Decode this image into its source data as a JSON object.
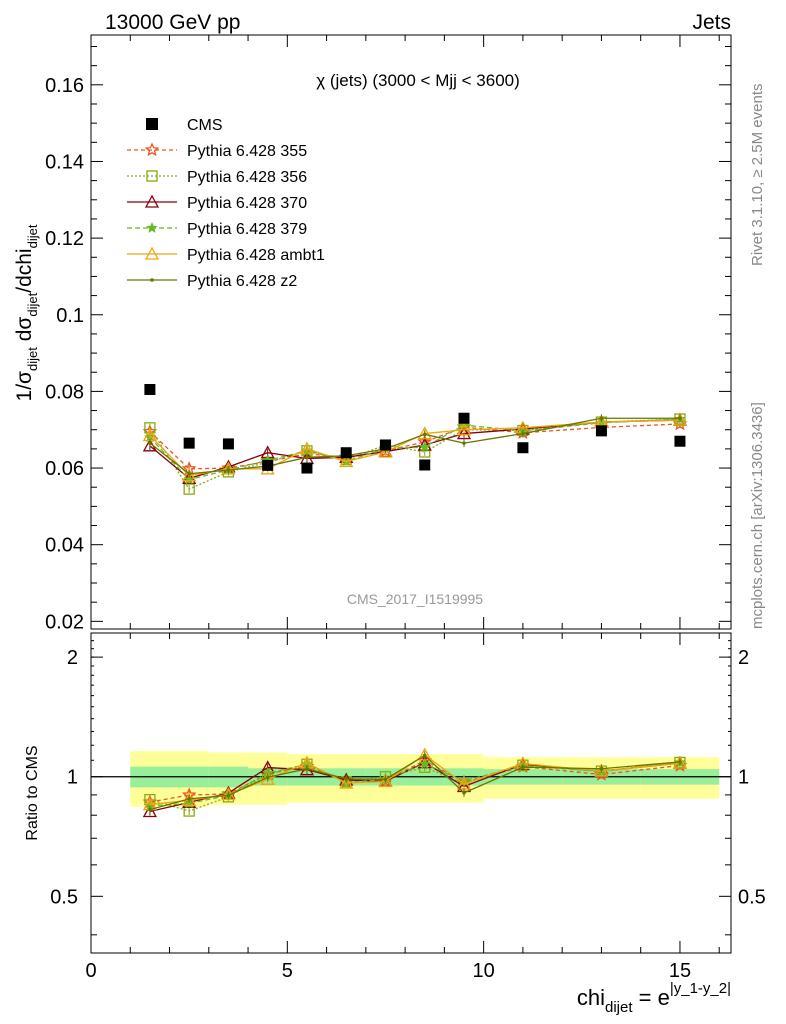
{
  "header": {
    "left": "13000 GeV pp",
    "right": "Jets"
  },
  "side_labels": {
    "rivet": "Rivet 3.1.10, ≥ 2.5M events",
    "mcplots": "mcplots.cern.ch [arXiv:1306.3436]"
  },
  "chart_data": {
    "type": "line",
    "title": "χ (jets) (3000 < Mjj < 3600)",
    "watermark": "CMS_2017_I1519995",
    "xlabel": "chi_dijet = e^|y_1-y_2|",
    "xlabel_parts": {
      "main": "chi",
      "sub": "dijet",
      "eq": " = e",
      "sup": "|y_1-y_2|"
    },
    "ylabel": "1/σ_dijet dσ_dijet/dchi_dijet",
    "ylabel_parts": {
      "a": "1/σ",
      "sa": "dijet",
      "b": " dσ",
      "sb": "dijet",
      "c": "/dchi",
      "sc": "dijet"
    },
    "ratio_ylabel": "Ratio to CMS",
    "xlim": [
      0,
      16.3
    ],
    "ylim": [
      0.018,
      0.173
    ],
    "ratio_ylim": [
      0.36,
      2.3
    ],
    "x_ticks": [
      "0",
      "5",
      "10",
      "15"
    ],
    "y_ticks": [
      "0.02",
      "0.04",
      "0.06",
      "0.08",
      "0.1",
      "0.12",
      "0.14",
      "0.16"
    ],
    "ratio_ticks": [
      "0.5",
      "1",
      "2"
    ],
    "legend_position": "top-left",
    "x": [
      1.5,
      2.5,
      3.5,
      4.5,
      5.5,
      6.5,
      7.5,
      8.5,
      9.5,
      11.0,
      13.0,
      15.0
    ],
    "bin_edges": [
      1,
      2,
      3,
      4,
      5,
      6,
      7,
      8,
      9,
      10,
      12,
      14,
      16
    ],
    "data": {
      "name": "CMS",
      "values": [
        0.0805,
        0.0665,
        0.0663,
        0.0607,
        0.06,
        0.064,
        0.066,
        0.0608,
        0.073,
        0.0653,
        0.0697,
        0.067
      ],
      "stat_band_ratio": [
        0.06,
        0.06,
        0.06,
        0.05,
        0.05,
        0.05,
        0.05,
        0.05,
        0.05,
        0.045,
        0.045,
        0.045
      ],
      "total_band_ratio": [
        0.16,
        0.16,
        0.15,
        0.15,
        0.14,
        0.14,
        0.14,
        0.14,
        0.14,
        0.12,
        0.12,
        0.12
      ]
    },
    "series": [
      {
        "name": "Pythia 6.428 355",
        "color": "#ee5522",
        "dash": "4,3",
        "marker": "star-open",
        "values": [
          0.0695,
          0.0598,
          0.06,
          0.0617,
          0.0637,
          0.0628,
          0.0645,
          0.0668,
          0.0707,
          0.0692,
          0.0706,
          0.0715
        ]
      },
      {
        "name": "Pythia 6.428 356",
        "color": "#88aa11",
        "dash": "2,2",
        "marker": "square-open",
        "values": [
          0.0705,
          0.0545,
          0.059,
          0.0615,
          0.0645,
          0.0622,
          0.066,
          0.0642,
          0.07,
          0.0698,
          0.072,
          0.0728
        ]
      },
      {
        "name": "Pythia 6.428 370",
        "color": "#880011",
        "dash": "",
        "marker": "triangle-open",
        "values": [
          0.0658,
          0.0573,
          0.0603,
          0.064,
          0.0625,
          0.0628,
          0.0643,
          0.066,
          0.069,
          0.0702,
          0.072,
          0.0725
        ]
      },
      {
        "name": "Pythia 6.428 379",
        "color": "#66bb22",
        "dash": "5,3",
        "marker": "star-filled",
        "values": [
          0.068,
          0.057,
          0.0595,
          0.062,
          0.0645,
          0.0618,
          0.065,
          0.0655,
          0.0712,
          0.0697,
          0.0718,
          0.0728
        ]
      },
      {
        "name": "Pythia 6.428 ambt1",
        "color": "#eea511",
        "dash": "",
        "marker": "triangle-open",
        "values": [
          0.0685,
          0.058,
          0.0598,
          0.0598,
          0.065,
          0.0617,
          0.0642,
          0.069,
          0.07,
          0.0705,
          0.072,
          0.0725
        ]
      },
      {
        "name": "Pythia 6.428 z2",
        "color": "#667700",
        "dash": "",
        "marker": "dot",
        "values": [
          0.0665,
          0.0585,
          0.0595,
          0.0605,
          0.0628,
          0.0632,
          0.065,
          0.0688,
          0.0665,
          0.069,
          0.073,
          0.073
        ]
      }
    ]
  }
}
